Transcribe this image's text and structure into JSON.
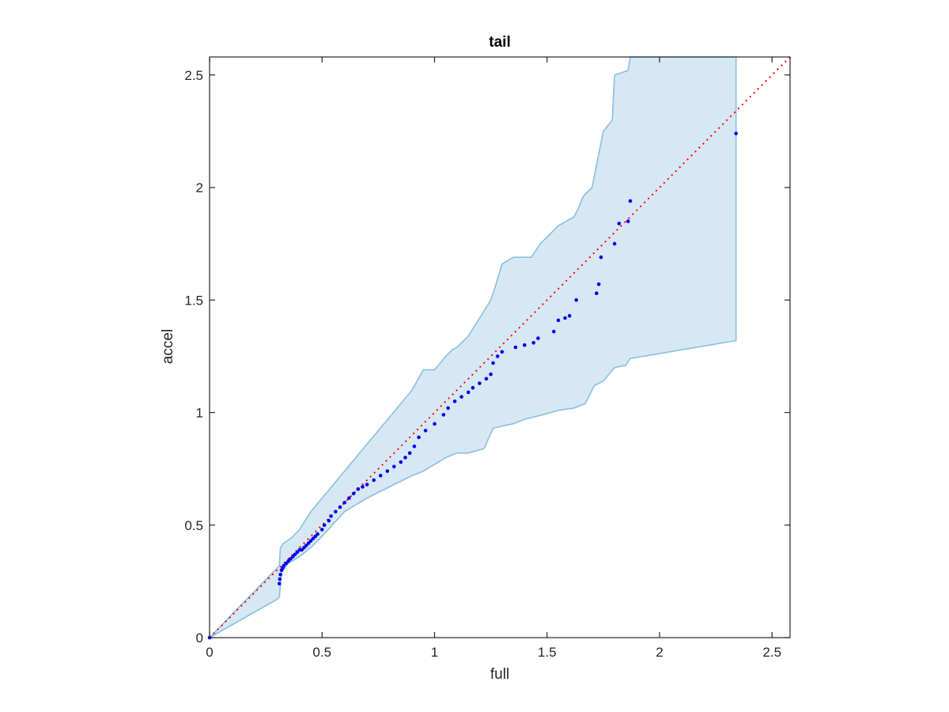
{
  "chart_data": {
    "type": "scatter",
    "title": "tail",
    "xlabel": "full",
    "ylabel": "accel",
    "xlim": [
      0,
      2.58
    ],
    "ylim": [
      0,
      2.58
    ],
    "xticks": [
      0,
      0.5,
      1,
      1.5,
      2,
      2.5
    ],
    "yticks": [
      0,
      0.5,
      1,
      1.5,
      2,
      2.5
    ],
    "xtick_labels": [
      "0",
      "0.5",
      "1",
      "1.5",
      "2",
      "2.5"
    ],
    "ytick_labels": [
      "0",
      "0.5",
      "1",
      "1.5",
      "2",
      "2.5"
    ],
    "grid": false,
    "colors": {
      "points": "#0000ee",
      "reference_line": "#ff0000",
      "band_fill": "#d6e8f4",
      "band_edge": "#8abfe0",
      "axes": "#262626"
    },
    "reference_line": {
      "x": [
        0,
        2.58
      ],
      "y": [
        0,
        2.58
      ]
    },
    "band": {
      "upper": [
        [
          0,
          0
        ],
        [
          0.31,
          0.32
        ],
        [
          0.315,
          0.4
        ],
        [
          0.33,
          0.42
        ],
        [
          0.36,
          0.44
        ],
        [
          0.4,
          0.48
        ],
        [
          0.45,
          0.56
        ],
        [
          0.5,
          0.62
        ],
        [
          0.55,
          0.68
        ],
        [
          0.6,
          0.74
        ],
        [
          0.65,
          0.8
        ],
        [
          0.7,
          0.86
        ],
        [
          0.75,
          0.92
        ],
        [
          0.8,
          0.98
        ],
        [
          0.85,
          1.04
        ],
        [
          0.9,
          1.1
        ],
        [
          0.95,
          1.19
        ],
        [
          1.0,
          1.19
        ],
        [
          1.05,
          1.25
        ],
        [
          1.08,
          1.28
        ],
        [
          1.1,
          1.29
        ],
        [
          1.15,
          1.34
        ],
        [
          1.2,
          1.42
        ],
        [
          1.25,
          1.5
        ],
        [
          1.27,
          1.56
        ],
        [
          1.3,
          1.66
        ],
        [
          1.35,
          1.69
        ],
        [
          1.43,
          1.69
        ],
        [
          1.47,
          1.75
        ],
        [
          1.55,
          1.83
        ],
        [
          1.62,
          1.87
        ],
        [
          1.64,
          1.91
        ],
        [
          1.66,
          1.96
        ],
        [
          1.7,
          2.0
        ],
        [
          1.75,
          2.25
        ],
        [
          1.79,
          2.3
        ],
        [
          1.8,
          2.5
        ],
        [
          1.86,
          2.52
        ],
        [
          1.87,
          2.58
        ],
        [
          2.34,
          2.58
        ]
      ],
      "lower": [
        [
          2.34,
          1.32
        ],
        [
          1.87,
          1.24
        ],
        [
          1.85,
          1.21
        ],
        [
          1.8,
          1.2
        ],
        [
          1.75,
          1.14
        ],
        [
          1.71,
          1.12
        ],
        [
          1.67,
          1.04
        ],
        [
          1.62,
          1.02
        ],
        [
          1.55,
          1.01
        ],
        [
          1.48,
          0.99
        ],
        [
          1.4,
          0.97
        ],
        [
          1.35,
          0.95
        ],
        [
          1.3,
          0.94
        ],
        [
          1.26,
          0.93
        ],
        [
          1.22,
          0.84
        ],
        [
          1.15,
          0.82
        ],
        [
          1.1,
          0.82
        ],
        [
          1.05,
          0.8
        ],
        [
          1.0,
          0.77
        ],
        [
          0.95,
          0.74
        ],
        [
          0.9,
          0.72
        ],
        [
          0.8,
          0.67
        ],
        [
          0.7,
          0.62
        ],
        [
          0.6,
          0.56
        ],
        [
          0.5,
          0.45
        ],
        [
          0.45,
          0.4
        ],
        [
          0.4,
          0.36
        ],
        [
          0.35,
          0.33
        ],
        [
          0.32,
          0.29
        ],
        [
          0.31,
          0.18
        ],
        [
          0.3,
          0.17
        ],
        [
          0,
          0
        ]
      ]
    },
    "points": [
      [
        0,
        0
      ],
      [
        0.31,
        0.24
      ],
      [
        0.312,
        0.26
      ],
      [
        0.315,
        0.28
      ],
      [
        0.32,
        0.3
      ],
      [
        0.325,
        0.31
      ],
      [
        0.33,
        0.32
      ],
      [
        0.34,
        0.33
      ],
      [
        0.35,
        0.34
      ],
      [
        0.36,
        0.35
      ],
      [
        0.37,
        0.36
      ],
      [
        0.38,
        0.37
      ],
      [
        0.39,
        0.38
      ],
      [
        0.4,
        0.39
      ],
      [
        0.41,
        0.39
      ],
      [
        0.42,
        0.4
      ],
      [
        0.43,
        0.41
      ],
      [
        0.44,
        0.42
      ],
      [
        0.45,
        0.43
      ],
      [
        0.46,
        0.44
      ],
      [
        0.47,
        0.45
      ],
      [
        0.48,
        0.46
      ],
      [
        0.5,
        0.48
      ],
      [
        0.51,
        0.5
      ],
      [
        0.53,
        0.52
      ],
      [
        0.54,
        0.54
      ],
      [
        0.56,
        0.56
      ],
      [
        0.58,
        0.58
      ],
      [
        0.6,
        0.6
      ],
      [
        0.62,
        0.62
      ],
      [
        0.64,
        0.64
      ],
      [
        0.66,
        0.66
      ],
      [
        0.68,
        0.67
      ],
      [
        0.7,
        0.68
      ],
      [
        0.73,
        0.7
      ],
      [
        0.76,
        0.72
      ],
      [
        0.79,
        0.74
      ],
      [
        0.82,
        0.76
      ],
      [
        0.85,
        0.78
      ],
      [
        0.87,
        0.8
      ],
      [
        0.89,
        0.82
      ],
      [
        0.91,
        0.85
      ],
      [
        0.93,
        0.89
      ],
      [
        0.96,
        0.92
      ],
      [
        1.0,
        0.95
      ],
      [
        1.04,
        0.99
      ],
      [
        1.06,
        1.02
      ],
      [
        1.09,
        1.05
      ],
      [
        1.12,
        1.07
      ],
      [
        1.15,
        1.09
      ],
      [
        1.17,
        1.11
      ],
      [
        1.2,
        1.13
      ],
      [
        1.23,
        1.15
      ],
      [
        1.25,
        1.17
      ],
      [
        1.26,
        1.22
      ],
      [
        1.28,
        1.25
      ],
      [
        1.3,
        1.27
      ],
      [
        1.36,
        1.29
      ],
      [
        1.4,
        1.3
      ],
      [
        1.44,
        1.31
      ],
      [
        1.46,
        1.33
      ],
      [
        1.53,
        1.36
      ],
      [
        1.55,
        1.41
      ],
      [
        1.58,
        1.42
      ],
      [
        1.6,
        1.43
      ],
      [
        1.63,
        1.5
      ],
      [
        1.72,
        1.53
      ],
      [
        1.73,
        1.57
      ],
      [
        1.74,
        1.69
      ],
      [
        1.8,
        1.75
      ],
      [
        1.82,
        1.84
      ],
      [
        1.86,
        1.85
      ],
      [
        1.87,
        1.94
      ],
      [
        2.34,
        2.24
      ]
    ]
  }
}
